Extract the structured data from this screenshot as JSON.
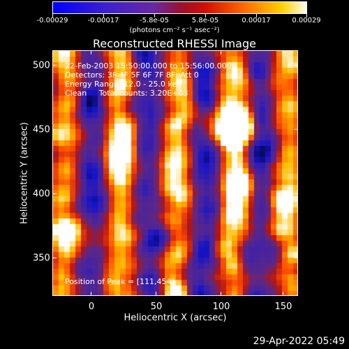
{
  "colorbar": {
    "tick_labels": [
      "-0.00029",
      "-0.00017",
      "-5.8e-05",
      "5.8e-05",
      "0.00017",
      "0.00029"
    ],
    "units": "(photons cm⁻² s⁻¹ asec⁻²)",
    "colors": [
      "#1010ff",
      "#4a1fd0",
      "#6b2aa8",
      "#c01010",
      "#ff5a00",
      "#ffb000",
      "#ffffff"
    ]
  },
  "title": "Reconstructed RHESSI Image",
  "info_lines": [
    "22-Feb-2003 15:50:00.000 to 15:56:00.000",
    "Detectors: 3F 4F 5F 6F 7F 8F, Att 0",
    "Energy Range: 12.0 - 25.0 keV",
    "Clean     Total counts: 3.20E+03"
  ],
  "peak_text": "Position of Peak = [111,454]",
  "axes": {
    "xlabel": "Heliocentric X (arcsec)",
    "ylabel": "Heliocentric Y (arcsec)",
    "xticks": [
      "0",
      "50",
      "100",
      "150"
    ],
    "yticks": [
      "500",
      "450",
      "400",
      "350"
    ],
    "xlim": [
      -30,
      160
    ],
    "ylim": [
      320,
      512
    ]
  },
  "footer_date": "29-Apr-2022 05:49"
}
